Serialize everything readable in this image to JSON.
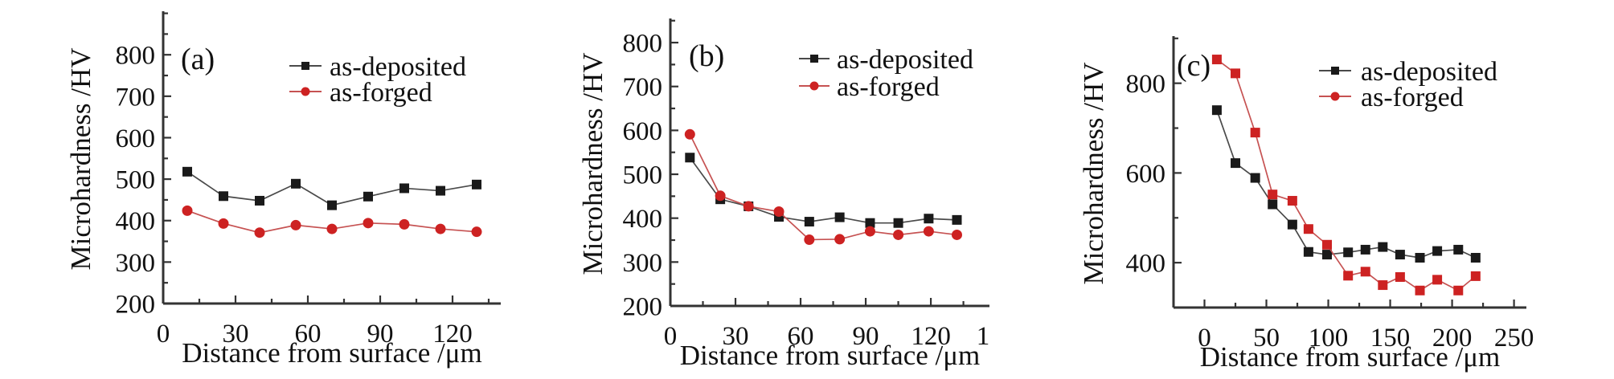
{
  "chart_data": [
    {
      "type": "line",
      "panel_label": "(a)",
      "title": "",
      "xlabel": "Distance from surface /μm",
      "ylabel": "Microhardness /HV",
      "x_axis": {
        "min": 0,
        "max": 140,
        "major_ticks": [
          0,
          30,
          60,
          90,
          120
        ],
        "minor_step": 15
      },
      "y_axis": {
        "min": 200,
        "max": 905,
        "major_ticks": [
          200,
          300,
          400,
          500,
          600,
          700,
          800
        ],
        "minor_step": 50
      },
      "legend_position": "top-right",
      "grid": false,
      "series": [
        {
          "name": "as-deposited",
          "marker": "square",
          "color": "#1a1a1a",
          "line_color": "#4a4a4a",
          "x": [
            10,
            25,
            40,
            55,
            70,
            85,
            100,
            115,
            130
          ],
          "values": [
            518,
            459,
            448,
            489,
            437,
            458,
            478,
            472,
            487
          ]
        },
        {
          "name": "as-forged",
          "marker": "circle",
          "color": "#cd2222",
          "line_color": "#c65252",
          "x": [
            10,
            25,
            40,
            55,
            70,
            85,
            100,
            115,
            130
          ],
          "values": [
            424,
            393,
            371,
            389,
            380,
            394,
            391,
            380,
            373
          ]
        }
      ]
    },
    {
      "type": "line",
      "panel_label": "(b)",
      "title": "",
      "xlabel": "Distance from surface /μm",
      "ylabel": "Microhardness /HV",
      "x_axis": {
        "min": 0,
        "max": 147,
        "major_ticks": [
          0,
          30,
          60,
          90,
          120
        ],
        "minor_step": 15,
        "extra_tick": {
          "value": 150,
          "label": "1"
        }
      },
      "y_axis": {
        "min": 200,
        "max": 855,
        "major_ticks": [
          200,
          300,
          400,
          500,
          600,
          700,
          800
        ],
        "minor_step": 50
      },
      "legend_position": "top-right",
      "grid": false,
      "series": [
        {
          "name": "as-deposited",
          "marker": "square",
          "color": "#1a1a1a",
          "line_color": "#4a4a4a",
          "x": [
            9,
            23,
            36,
            50,
            64,
            78,
            92,
            105,
            119,
            132
          ],
          "values": [
            538,
            443,
            427,
            403,
            392,
            402,
            389,
            389,
            399,
            396
          ]
        },
        {
          "name": "as-forged",
          "marker": "circle",
          "color": "#cd2222",
          "line_color": "#c65252",
          "x": [
            9,
            23,
            36,
            50,
            64,
            78,
            92,
            105,
            119,
            132
          ],
          "values": [
            591,
            451,
            427,
            415,
            351,
            352,
            370,
            362,
            370,
            362
          ]
        }
      ]
    },
    {
      "type": "line",
      "panel_label": "(c)",
      "title": "",
      "xlabel": "Distance from surface /μm",
      "ylabel": "Microhardness /HV",
      "x_axis": {
        "min": -25,
        "max": 260,
        "major_ticks": [
          0,
          50,
          100,
          150,
          200,
          250
        ],
        "minor_step": 25
      },
      "y_axis": {
        "min": 300,
        "max": 905,
        "major_ticks": [
          400,
          600,
          800
        ],
        "minor_step": 100
      },
      "legend_position": "top-right",
      "grid": false,
      "series": [
        {
          "name": "as-deposited",
          "marker": "square",
          "legend_marker": "square",
          "color": "#1a1a1a",
          "line_color": "#4a4a4a",
          "x": [
            10,
            25,
            41,
            55,
            71,
            84,
            99,
            116,
            130,
            144,
            158,
            174,
            188,
            205,
            219
          ],
          "values": [
            740,
            622,
            589,
            530,
            485,
            424,
            418,
            423,
            429,
            435,
            418,
            411,
            426,
            429,
            411
          ]
        },
        {
          "name": "as-forged",
          "marker": "square",
          "legend_marker": "circle",
          "color": "#cd2222",
          "line_color": "#c65252",
          "x": [
            10,
            25,
            41,
            55,
            71,
            84,
            99,
            116,
            130,
            144,
            158,
            174,
            188,
            205,
            219
          ],
          "values": [
            853,
            822,
            690,
            552,
            538,
            475,
            440,
            371,
            380,
            350,
            368,
            338,
            362,
            338,
            370
          ]
        }
      ]
    }
  ]
}
